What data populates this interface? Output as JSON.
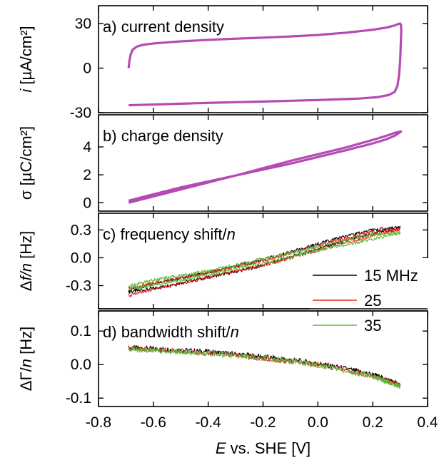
{
  "chart_data": [
    {
      "type": "line",
      "panel": "a",
      "label_prefix": "a)",
      "label_text": "current density",
      "ylabel_italic": "i",
      "ylabel": "[µA/cm²]",
      "xlim": [
        -0.8,
        0.4
      ],
      "ylim": [
        -30,
        42
      ],
      "yticks": [
        30,
        0,
        -30
      ],
      "color": "#b64ab3",
      "series": [
        {
          "name": "",
          "x": [
            -0.69,
            -0.688,
            -0.683,
            -0.675,
            -0.66,
            -0.64,
            -0.6,
            -0.5,
            -0.4,
            -0.3,
            -0.2,
            -0.1,
            0.0,
            0.1,
            0.2,
            0.25,
            0.28,
            0.295,
            0.3,
            0.303,
            0.304,
            0.302,
            0.3,
            0.296,
            0.29,
            0.28,
            0.26,
            0.22,
            0.15,
            0.0,
            -0.2,
            -0.4,
            -0.6,
            -0.69
          ],
          "y": [
            0,
            4,
            9,
            12.5,
            14.5,
            15.6,
            16.6,
            18,
            19,
            19.8,
            20.5,
            21.3,
            22.3,
            23.8,
            25.8,
            27.3,
            28.7,
            29.8,
            30,
            29,
            25,
            15,
            5,
            -5,
            -12,
            -16,
            -18,
            -19.5,
            -20.5,
            -21.5,
            -22.5,
            -23.4,
            -24.5,
            -25
          ]
        }
      ]
    },
    {
      "type": "line",
      "panel": "b",
      "label_prefix": "b)",
      "label_text": "charge density",
      "ylabel": "σ [µC/cm²]",
      "xlim": [
        -0.8,
        0.4
      ],
      "ylim": [
        -0.6,
        6.3
      ],
      "yticks": [
        4,
        2,
        0
      ],
      "color": "#b64ab3",
      "series": [
        {
          "name": "",
          "x": [
            -0.69,
            -0.5,
            -0.3,
            -0.1,
            0.1,
            0.2,
            0.25,
            0.28,
            0.3,
            0.303,
            0.3,
            0.28,
            0.25,
            0.2,
            0.1,
            -0.1,
            -0.3,
            -0.5,
            -0.69
          ],
          "y": [
            0.15,
            1.1,
            1.95,
            2.8,
            3.75,
            4.25,
            4.55,
            4.8,
            5.05,
            5.1,
            5.1,
            5.0,
            4.8,
            4.5,
            3.95,
            3.0,
            1.95,
            0.95,
            0.0
          ]
        }
      ]
    },
    {
      "type": "line",
      "panel": "c",
      "label_prefix": "c)",
      "label_text": "frequency shift/",
      "label_italic": "n",
      "ylabel_prefix": "Δ",
      "ylabel_italic": "f/n",
      "ylabel": "[Hz]",
      "xlim": [
        -0.8,
        0.4
      ],
      "ylim": [
        -0.55,
        0.48
      ],
      "yticks": [
        0.3,
        0.0,
        -0.3
      ],
      "ytick_labels": [
        "0.3",
        "0.0",
        "-0.3"
      ],
      "legend": {
        "placement": "lower-right",
        "entries": [
          {
            "name": "15 MHz",
            "color": "#000000"
          },
          {
            "name": "25",
            "color": "#e8201a"
          },
          {
            "name": "35",
            "color": "#5fbd3a"
          }
        ]
      },
      "series": [
        {
          "name": "15 MHz",
          "color": "#000000",
          "x": [
            -0.69,
            -0.6,
            -0.5,
            -0.4,
            -0.3,
            -0.2,
            -0.1,
            0.0,
            0.1,
            0.2,
            0.3,
            0.2,
            0.1,
            0.0,
            -0.1,
            -0.2,
            -0.3,
            -0.4,
            -0.5,
            -0.6,
            -0.69
          ],
          "y": [
            -0.37,
            -0.33,
            -0.27,
            -0.21,
            -0.15,
            -0.08,
            0.01,
            0.1,
            0.18,
            0.26,
            0.33,
            0.3,
            0.23,
            0.15,
            0.06,
            -0.02,
            -0.09,
            -0.16,
            -0.22,
            -0.28,
            -0.35
          ]
        },
        {
          "name": "25",
          "color": "#e8201a",
          "x": [
            -0.69,
            -0.6,
            -0.5,
            -0.4,
            -0.3,
            -0.2,
            -0.1,
            0.0,
            0.1,
            0.2,
            0.3,
            0.2,
            0.1,
            0.0,
            -0.1,
            -0.2,
            -0.3,
            -0.4,
            -0.5,
            -0.6,
            -0.69
          ],
          "y": [
            -0.41,
            -0.34,
            -0.28,
            -0.21,
            -0.15,
            -0.08,
            0.0,
            0.08,
            0.16,
            0.24,
            0.31,
            0.28,
            0.21,
            0.13,
            0.05,
            -0.03,
            -0.1,
            -0.16,
            -0.22,
            -0.27,
            -0.33
          ]
        },
        {
          "name": "35",
          "color": "#5fbd3a",
          "x": [
            -0.69,
            -0.6,
            -0.5,
            -0.4,
            -0.3,
            -0.2,
            -0.1,
            0.0,
            0.1,
            0.2,
            0.3,
            0.2,
            0.1,
            0.0,
            -0.1,
            -0.2,
            -0.3,
            -0.4,
            -0.5,
            -0.6,
            -0.69
          ],
          "y": [
            -0.34,
            -0.29,
            -0.24,
            -0.18,
            -0.12,
            -0.06,
            0.01,
            0.08,
            0.14,
            0.2,
            0.27,
            0.25,
            0.19,
            0.12,
            0.05,
            -0.01,
            -0.08,
            -0.14,
            -0.19,
            -0.24,
            -0.3
          ]
        }
      ]
    },
    {
      "type": "line",
      "panel": "d",
      "label_prefix": "d)",
      "label_text": "bandwidth shift/",
      "label_italic": "n",
      "ylabel_prefix": "ΔΓ/",
      "ylabel_italic": "n",
      "ylabel": "[Hz]",
      "xlabel_italic": "E",
      "xlabel": "vs. SHE [V]",
      "xlim": [
        -0.8,
        0.4
      ],
      "xticks": [
        -0.8,
        -0.6,
        -0.4,
        -0.2,
        0.0,
        0.2,
        0.4
      ],
      "xtick_labels": [
        "-0.8",
        "-0.6",
        "-0.4",
        "-0.2",
        "0.0",
        "0.2",
        "0.4"
      ],
      "ylim": [
        -0.125,
        0.16
      ],
      "yticks": [
        0.1,
        0.0,
        -0.1
      ],
      "ytick_labels": [
        "0.1",
        "0.0",
        "-0.1"
      ],
      "series": [
        {
          "name": "15 MHz",
          "color": "#000000",
          "x": [
            -0.69,
            -0.6,
            -0.5,
            -0.4,
            -0.3,
            -0.2,
            -0.1,
            0.0,
            0.1,
            0.2,
            0.25,
            0.3
          ],
          "y": [
            0.05,
            0.047,
            0.043,
            0.038,
            0.031,
            0.023,
            0.014,
            0.003,
            -0.012,
            -0.03,
            -0.045,
            -0.06
          ]
        },
        {
          "name": "25",
          "color": "#e8201a",
          "x": [
            -0.69,
            -0.6,
            -0.5,
            -0.4,
            -0.3,
            -0.2,
            -0.1,
            0.0,
            0.1,
            0.2,
            0.25,
            0.3
          ],
          "y": [
            0.047,
            0.044,
            0.04,
            0.034,
            0.027,
            0.019,
            0.01,
            0.0,
            -0.016,
            -0.034,
            -0.047,
            -0.062
          ]
        },
        {
          "name": "35",
          "color": "#5fbd3a",
          "x": [
            -0.69,
            -0.6,
            -0.5,
            -0.4,
            -0.3,
            -0.2,
            -0.1,
            0.0,
            0.1,
            0.2,
            0.25,
            0.3
          ],
          "y": [
            0.045,
            0.043,
            0.038,
            0.033,
            0.027,
            0.019,
            0.01,
            -0.002,
            -0.018,
            -0.036,
            -0.05,
            -0.065
          ]
        }
      ]
    }
  ]
}
